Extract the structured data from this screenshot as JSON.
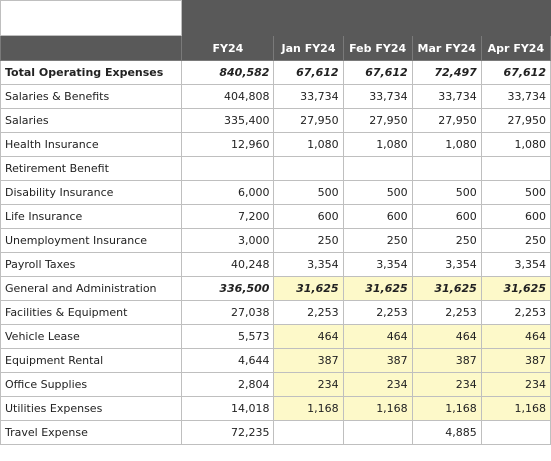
{
  "headers": [
    "FY24",
    "Jan FY24",
    "Feb FY24",
    "Mar FY24",
    "Apr FY24"
  ],
  "rows": [
    {
      "label": "Total Operating Expenses",
      "level": 0,
      "bold": true,
      "green": true,
      "yellow": false,
      "values": [
        "840,582",
        "67,612",
        "67,612",
        "72,497",
        "67,612"
      ]
    },
    {
      "label": "Salaries & Benefits",
      "level": 1,
      "values": [
        "404,808",
        "33,734",
        "33,734",
        "33,734",
        "33,734"
      ]
    },
    {
      "label": "Salaries",
      "level": 2,
      "values": [
        "335,400",
        "27,950",
        "27,950",
        "27,950",
        "27,950"
      ]
    },
    {
      "label": "Health Insurance",
      "level": 2,
      "values": [
        "12,960",
        "1,080",
        "1,080",
        "1,080",
        "1,080"
      ]
    },
    {
      "label": "Retirement Benefit",
      "level": 2,
      "values": [
        "",
        "",
        "",
        "",
        ""
      ]
    },
    {
      "label": "Disability  Insurance",
      "level": 2,
      "values": [
        "6,000",
        "500",
        "500",
        "500",
        "500"
      ]
    },
    {
      "label": "Life Insurance",
      "level": 2,
      "values": [
        "7,200",
        "600",
        "600",
        "600",
        "600"
      ]
    },
    {
      "label": "Unemployment Insurance",
      "level": 2,
      "values": [
        "3,000",
        "250",
        "250",
        "250",
        "250"
      ]
    },
    {
      "label": "Payroll Taxes",
      "level": 2,
      "values": [
        "40,248",
        "3,354",
        "3,354",
        "3,354",
        "3,354"
      ]
    },
    {
      "label": "General and Administration",
      "level": 1,
      "green": true,
      "yellow": true,
      "values": [
        "336,500",
        "31,625",
        "31,625",
        "31,625",
        "31,625"
      ]
    },
    {
      "label": "Facilities & Equipment",
      "level": 1,
      "values": [
        "27,038",
        "2,253",
        "2,253",
        "2,253",
        "2,253"
      ]
    },
    {
      "label": "Vehicle Lease",
      "level": 2,
      "yellow": true,
      "values": [
        "5,573",
        "464",
        "464",
        "464",
        "464"
      ]
    },
    {
      "label": "Equipment Rental",
      "level": 2,
      "yellow": true,
      "values": [
        "4,644",
        "387",
        "387",
        "387",
        "387"
      ]
    },
    {
      "label": "Office Supplies",
      "level": 2,
      "yellow": true,
      "values": [
        "2,804",
        "234",
        "234",
        "234",
        "234"
      ]
    },
    {
      "label": "Utilities Expenses",
      "level": 2,
      "yellow": true,
      "values": [
        "14,018",
        "1,168",
        "1,168",
        "1,168",
        "1,168"
      ]
    },
    {
      "label": "Travel Expense",
      "level": 1,
      "values": [
        "72,235",
        "",
        "",
        "4,885",
        ""
      ]
    }
  ],
  "colors": {
    "header_bg": "#595959",
    "green_text": "#1ea34a",
    "highlight": "#fdf9c9"
  }
}
